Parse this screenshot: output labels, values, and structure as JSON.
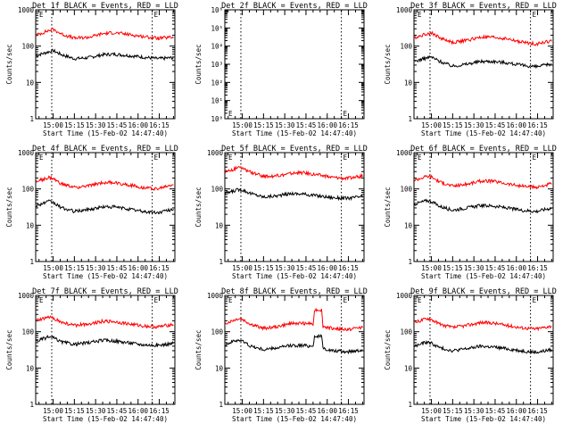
{
  "colors": {
    "events": "#000000",
    "lld": "#ff0000"
  },
  "chart_data": [
    {
      "type": "line",
      "title": "Det 1f BLACK = Events, RED = LLD",
      "xlabel": "Start Time (15-Feb-02 14:47:40)",
      "ylabel": "Counts/sec",
      "xlim": [
        "14:47:40",
        "16:26:00"
      ],
      "ylim": [
        1,
        1000
      ],
      "yscale": "log",
      "yticks": [
        "1",
        "10",
        "100",
        "1000"
      ],
      "xticks": [
        "15:00",
        "15:15",
        "15:30",
        "15:45",
        "16:00",
        "16:15"
      ],
      "markers": [
        {
          "time": "14:59:00",
          "label": ""
        },
        {
          "time": "16:10:00",
          "label": ""
        }
      ],
      "annotations": [
        "E",
        "E"
      ],
      "series": [
        {
          "key": "events",
          "x": [
            "14:48",
            "14:57",
            "15:00",
            "15:06",
            "15:15",
            "15:25",
            "15:35",
            "15:43",
            "15:53",
            "16:03",
            "16:14",
            "16:25"
          ],
          "values": [
            55,
            70,
            75,
            58,
            45,
            48,
            58,
            60,
            55,
            50,
            45,
            48
          ]
        },
        {
          "key": "lld",
          "x": [
            "14:48",
            "14:57",
            "15:00",
            "15:06",
            "15:15",
            "15:25",
            "15:35",
            "15:43",
            "15:53",
            "16:03",
            "16:14",
            "16:25"
          ],
          "values": [
            200,
            270,
            290,
            215,
            165,
            175,
            220,
            235,
            210,
            185,
            165,
            175
          ]
        }
      ]
    },
    {
      "type": "line",
      "title": "Det 2f BLACK = Events, RED = LLD",
      "xlabel": "Start Time (15-Feb-02 14:47:40)",
      "ylabel": "Counts/sec",
      "xlim": [
        "14:47:40",
        "16:26:00"
      ],
      "ylim": [
        1,
        1000000
      ],
      "yscale": "log",
      "yticks": [
        "10⁰",
        "10¹",
        "10²",
        "10³",
        "10⁴",
        "10⁵",
        "10⁶"
      ],
      "xticks": [
        "15:00",
        "15:15",
        "15:30",
        "15:45",
        "16:00",
        "16:15"
      ],
      "markers": [
        {
          "time": "14:59:00",
          "label": ""
        },
        {
          "time": "16:10:00",
          "label": ""
        }
      ],
      "annotations": [
        "E",
        "E"
      ],
      "series": []
    },
    {
      "type": "line",
      "title": "Det 3f BLACK = Events, RED = LLD",
      "xlabel": "Start Time (15-Feb-02 14:47:40)",
      "ylabel": "Counts/sec",
      "xlim": [
        "14:47:40",
        "16:26:00"
      ],
      "ylim": [
        1,
        1000
      ],
      "yscale": "log",
      "yticks": [
        "1",
        "10",
        "100",
        "1000"
      ],
      "xticks": [
        "15:00",
        "15:15",
        "15:30",
        "15:45",
        "16:00",
        "16:15"
      ],
      "markers": [
        {
          "time": "14:59:00",
          "label": ""
        },
        {
          "time": "16:10:00",
          "label": ""
        }
      ],
      "annotations": [
        "E",
        "E"
      ],
      "series": [
        {
          "key": "events",
          "x": [
            "14:48",
            "14:57",
            "15:00",
            "15:06",
            "15:15",
            "15:25",
            "15:35",
            "15:43",
            "15:53",
            "16:03",
            "16:14",
            "16:25"
          ],
          "values": [
            38,
            48,
            50,
            38,
            28,
            32,
            38,
            38,
            35,
            30,
            27,
            32
          ]
        },
        {
          "key": "lld",
          "x": [
            "14:48",
            "14:57",
            "15:00",
            "15:06",
            "15:15",
            "15:25",
            "15:35",
            "15:43",
            "15:53",
            "16:03",
            "16:14",
            "16:25"
          ],
          "values": [
            170,
            220,
            230,
            170,
            125,
            145,
            175,
            175,
            160,
            130,
            115,
            140
          ]
        }
      ]
    },
    {
      "type": "line",
      "title": "Det 4f BLACK = Events, RED = LLD",
      "xlabel": "Start Time (15-Feb-02 14:47:40)",
      "ylabel": "Counts/sec",
      "xlim": [
        "14:47:40",
        "16:26:00"
      ],
      "ylim": [
        1,
        1000
      ],
      "yscale": "log",
      "yticks": [
        "1",
        "10",
        "100",
        "1000"
      ],
      "xticks": [
        "15:00",
        "15:15",
        "15:30",
        "15:45",
        "16:00",
        "16:15"
      ],
      "markers": [
        {
          "time": "14:59:00",
          "label": ""
        },
        {
          "time": "16:10:00",
          "label": ""
        }
      ],
      "annotations": [
        "E",
        "E"
      ],
      "series": [
        {
          "key": "events",
          "x": [
            "14:48",
            "14:57",
            "15:00",
            "15:06",
            "15:15",
            "15:25",
            "15:35",
            "15:43",
            "15:53",
            "16:03",
            "16:14",
            "16:25"
          ],
          "values": [
            35,
            45,
            42,
            30,
            24,
            27,
            32,
            32,
            28,
            24,
            22,
            28
          ]
        },
        {
          "key": "lld",
          "x": [
            "14:48",
            "14:57",
            "15:00",
            "15:06",
            "15:15",
            "15:25",
            "15:35",
            "15:43",
            "15:53",
            "16:03",
            "16:14",
            "16:25"
          ],
          "values": [
            160,
            205,
            190,
            135,
            110,
            120,
            150,
            150,
            130,
            110,
            100,
            135
          ]
        }
      ]
    },
    {
      "type": "line",
      "title": "Det 5f BLACK = Events, RED = LLD",
      "xlabel": "Start Time (15-Feb-02 14:47:40)",
      "ylabel": "Counts/sec",
      "xlim": [
        "14:47:40",
        "16:26:00"
      ],
      "ylim": [
        1,
        1000
      ],
      "yscale": "log",
      "yticks": [
        "1",
        "10",
        "100",
        "1000"
      ],
      "xticks": [
        "15:00",
        "15:15",
        "15:30",
        "15:45",
        "16:00",
        "16:15"
      ],
      "markers": [
        {
          "time": "14:59:00",
          "label": ""
        },
        {
          "time": "16:10:00",
          "label": ""
        }
      ],
      "annotations": [
        "E",
        "E"
      ],
      "series": [
        {
          "key": "events",
          "x": [
            "14:48",
            "14:57",
            "15:00",
            "15:06",
            "15:15",
            "15:25",
            "15:35",
            "15:43",
            "15:53",
            "16:03",
            "16:14",
            "16:25"
          ],
          "values": [
            75,
            95,
            95,
            75,
            60,
            65,
            75,
            72,
            65,
            58,
            55,
            62
          ]
        },
        {
          "key": "lld",
          "x": [
            "14:48",
            "14:57",
            "15:00",
            "15:06",
            "15:15",
            "15:25",
            "15:35",
            "15:43",
            "15:53",
            "16:03",
            "16:14",
            "16:25"
          ],
          "values": [
            300,
            380,
            370,
            290,
            220,
            230,
            270,
            280,
            245,
            210,
            195,
            225
          ]
        }
      ]
    },
    {
      "type": "line",
      "title": "Det 6f BLACK = Events, RED = LLD",
      "xlabel": "Start Time (15-Feb-02 14:47:40)",
      "ylabel": "Counts/sec",
      "xlim": [
        "14:47:40",
        "16:26:00"
      ],
      "ylim": [
        1,
        1000
      ],
      "yscale": "log",
      "yticks": [
        "1",
        "10",
        "100",
        "1000"
      ],
      "xticks": [
        "15:00",
        "15:15",
        "15:30",
        "15:45",
        "16:00",
        "16:15"
      ],
      "markers": [
        {
          "time": "14:59:00",
          "label": ""
        },
        {
          "time": "16:10:00",
          "label": ""
        }
      ],
      "annotations": [
        "E",
        "E"
      ],
      "series": [
        {
          "key": "events",
          "x": [
            "14:48",
            "14:57",
            "15:00",
            "15:06",
            "15:15",
            "15:25",
            "15:35",
            "15:43",
            "15:53",
            "16:03",
            "16:14",
            "16:25"
          ],
          "values": [
            38,
            48,
            45,
            33,
            26,
            30,
            35,
            34,
            30,
            26,
            24,
            30
          ]
        },
        {
          "key": "lld",
          "x": [
            "14:48",
            "14:57",
            "15:00",
            "15:06",
            "15:15",
            "15:25",
            "15:35",
            "15:43",
            "15:53",
            "16:03",
            "16:14",
            "16:25"
          ],
          "values": [
            175,
            225,
            215,
            155,
            120,
            135,
            165,
            165,
            140,
            120,
            110,
            140
          ]
        }
      ]
    },
    {
      "type": "line",
      "title": "Det 7f BLACK = Events, RED = LLD",
      "xlabel": "Start Time (15-Feb-02 14:47:40)",
      "ylabel": "Counts/sec",
      "xlim": [
        "14:47:40",
        "16:26:00"
      ],
      "ylim": [
        1,
        1000
      ],
      "yscale": "log",
      "yticks": [
        "1",
        "10",
        "100",
        "1000"
      ],
      "xticks": [
        "15:00",
        "15:15",
        "15:30",
        "15:45",
        "16:00",
        "16:15"
      ],
      "markers": [
        {
          "time": "14:59:00",
          "label": ""
        },
        {
          "time": "16:10:00",
          "label": ""
        }
      ],
      "annotations": [
        "E",
        "E"
      ],
      "series": [
        {
          "key": "events",
          "x": [
            "14:48",
            "14:57",
            "15:00",
            "15:06",
            "15:15",
            "15:25",
            "15:35",
            "15:43",
            "15:53",
            "16:03",
            "16:14",
            "16:25"
          ],
          "values": [
            55,
            72,
            68,
            52,
            45,
            50,
            58,
            56,
            50,
            44,
            42,
            48
          ]
        },
        {
          "key": "lld",
          "x": [
            "14:48",
            "14:57",
            "15:00",
            "15:06",
            "15:15",
            "15:25",
            "15:35",
            "15:43",
            "15:53",
            "16:03",
            "16:14",
            "16:25"
          ],
          "values": [
            200,
            250,
            240,
            180,
            150,
            165,
            195,
            190,
            165,
            145,
            135,
            160
          ]
        }
      ]
    },
    {
      "type": "line",
      "title": "Det 8f BLACK = Events, RED = LLD",
      "xlabel": "Start Time (15-Feb-02 14:47:40)",
      "ylabel": "Counts/sec",
      "xlim": [
        "14:47:40",
        "16:26:00"
      ],
      "ylim": [
        1,
        1000
      ],
      "yscale": "log",
      "yticks": [
        "1",
        "10",
        "100",
        "1000"
      ],
      "xticks": [
        "15:00",
        "15:15",
        "15:30",
        "15:45",
        "16:00",
        "16:15"
      ],
      "markers": [
        {
          "time": "14:59:00",
          "label": ""
        },
        {
          "time": "16:10:00",
          "label": ""
        }
      ],
      "annotations": [
        "E",
        "E"
      ],
      "series": [
        {
          "key": "events",
          "x": [
            "14:48",
            "14:57",
            "15:00",
            "15:06",
            "15:15",
            "15:25",
            "15:35",
            "15:43",
            "15:50",
            "15:51",
            "15:56",
            "15:57",
            "16:03",
            "16:14",
            "16:25"
          ],
          "values": [
            45,
            60,
            55,
            40,
            32,
            36,
            42,
            42,
            40,
            75,
            75,
            35,
            30,
            28,
            32
          ]
        },
        {
          "key": "lld",
          "x": [
            "14:48",
            "14:57",
            "15:00",
            "15:06",
            "15:15",
            "15:25",
            "15:35",
            "15:43",
            "15:50",
            "15:51",
            "15:56",
            "15:57",
            "16:03",
            "16:14",
            "16:25"
          ],
          "values": [
            170,
            230,
            220,
            160,
            125,
            140,
            170,
            170,
            165,
            400,
            400,
            140,
            125,
            115,
            135
          ]
        }
      ]
    },
    {
      "type": "line",
      "title": "Det 9f BLACK = Events, RED = LLD",
      "xlabel": "Start Time (15-Feb-02 14:47:40)",
      "ylabel": "Counts/sec",
      "xlim": [
        "14:47:40",
        "16:26:00"
      ],
      "ylim": [
        1,
        1000
      ],
      "yscale": "log",
      "yticks": [
        "1",
        "10",
        "100",
        "1000"
      ],
      "xticks": [
        "15:00",
        "15:15",
        "15:30",
        "15:45",
        "16:00",
        "16:15"
      ],
      "markers": [
        {
          "time": "14:59:00",
          "label": ""
        },
        {
          "time": "16:10:00",
          "label": ""
        }
      ],
      "annotations": [
        "E",
        "E"
      ],
      "series": [
        {
          "key": "events",
          "x": [
            "14:48",
            "14:57",
            "15:00",
            "15:06",
            "15:15",
            "15:25",
            "15:35",
            "15:43",
            "15:53",
            "16:03",
            "16:14",
            "16:25"
          ],
          "values": [
            40,
            52,
            48,
            36,
            30,
            34,
            40,
            38,
            34,
            30,
            27,
            32
          ]
        },
        {
          "key": "lld",
          "x": [
            "14:48",
            "14:57",
            "15:00",
            "15:06",
            "15:15",
            "15:25",
            "15:35",
            "15:43",
            "15:53",
            "16:03",
            "16:14",
            "16:25"
          ],
          "values": [
            180,
            235,
            220,
            160,
            130,
            150,
            180,
            175,
            150,
            130,
            120,
            145
          ]
        }
      ]
    }
  ]
}
